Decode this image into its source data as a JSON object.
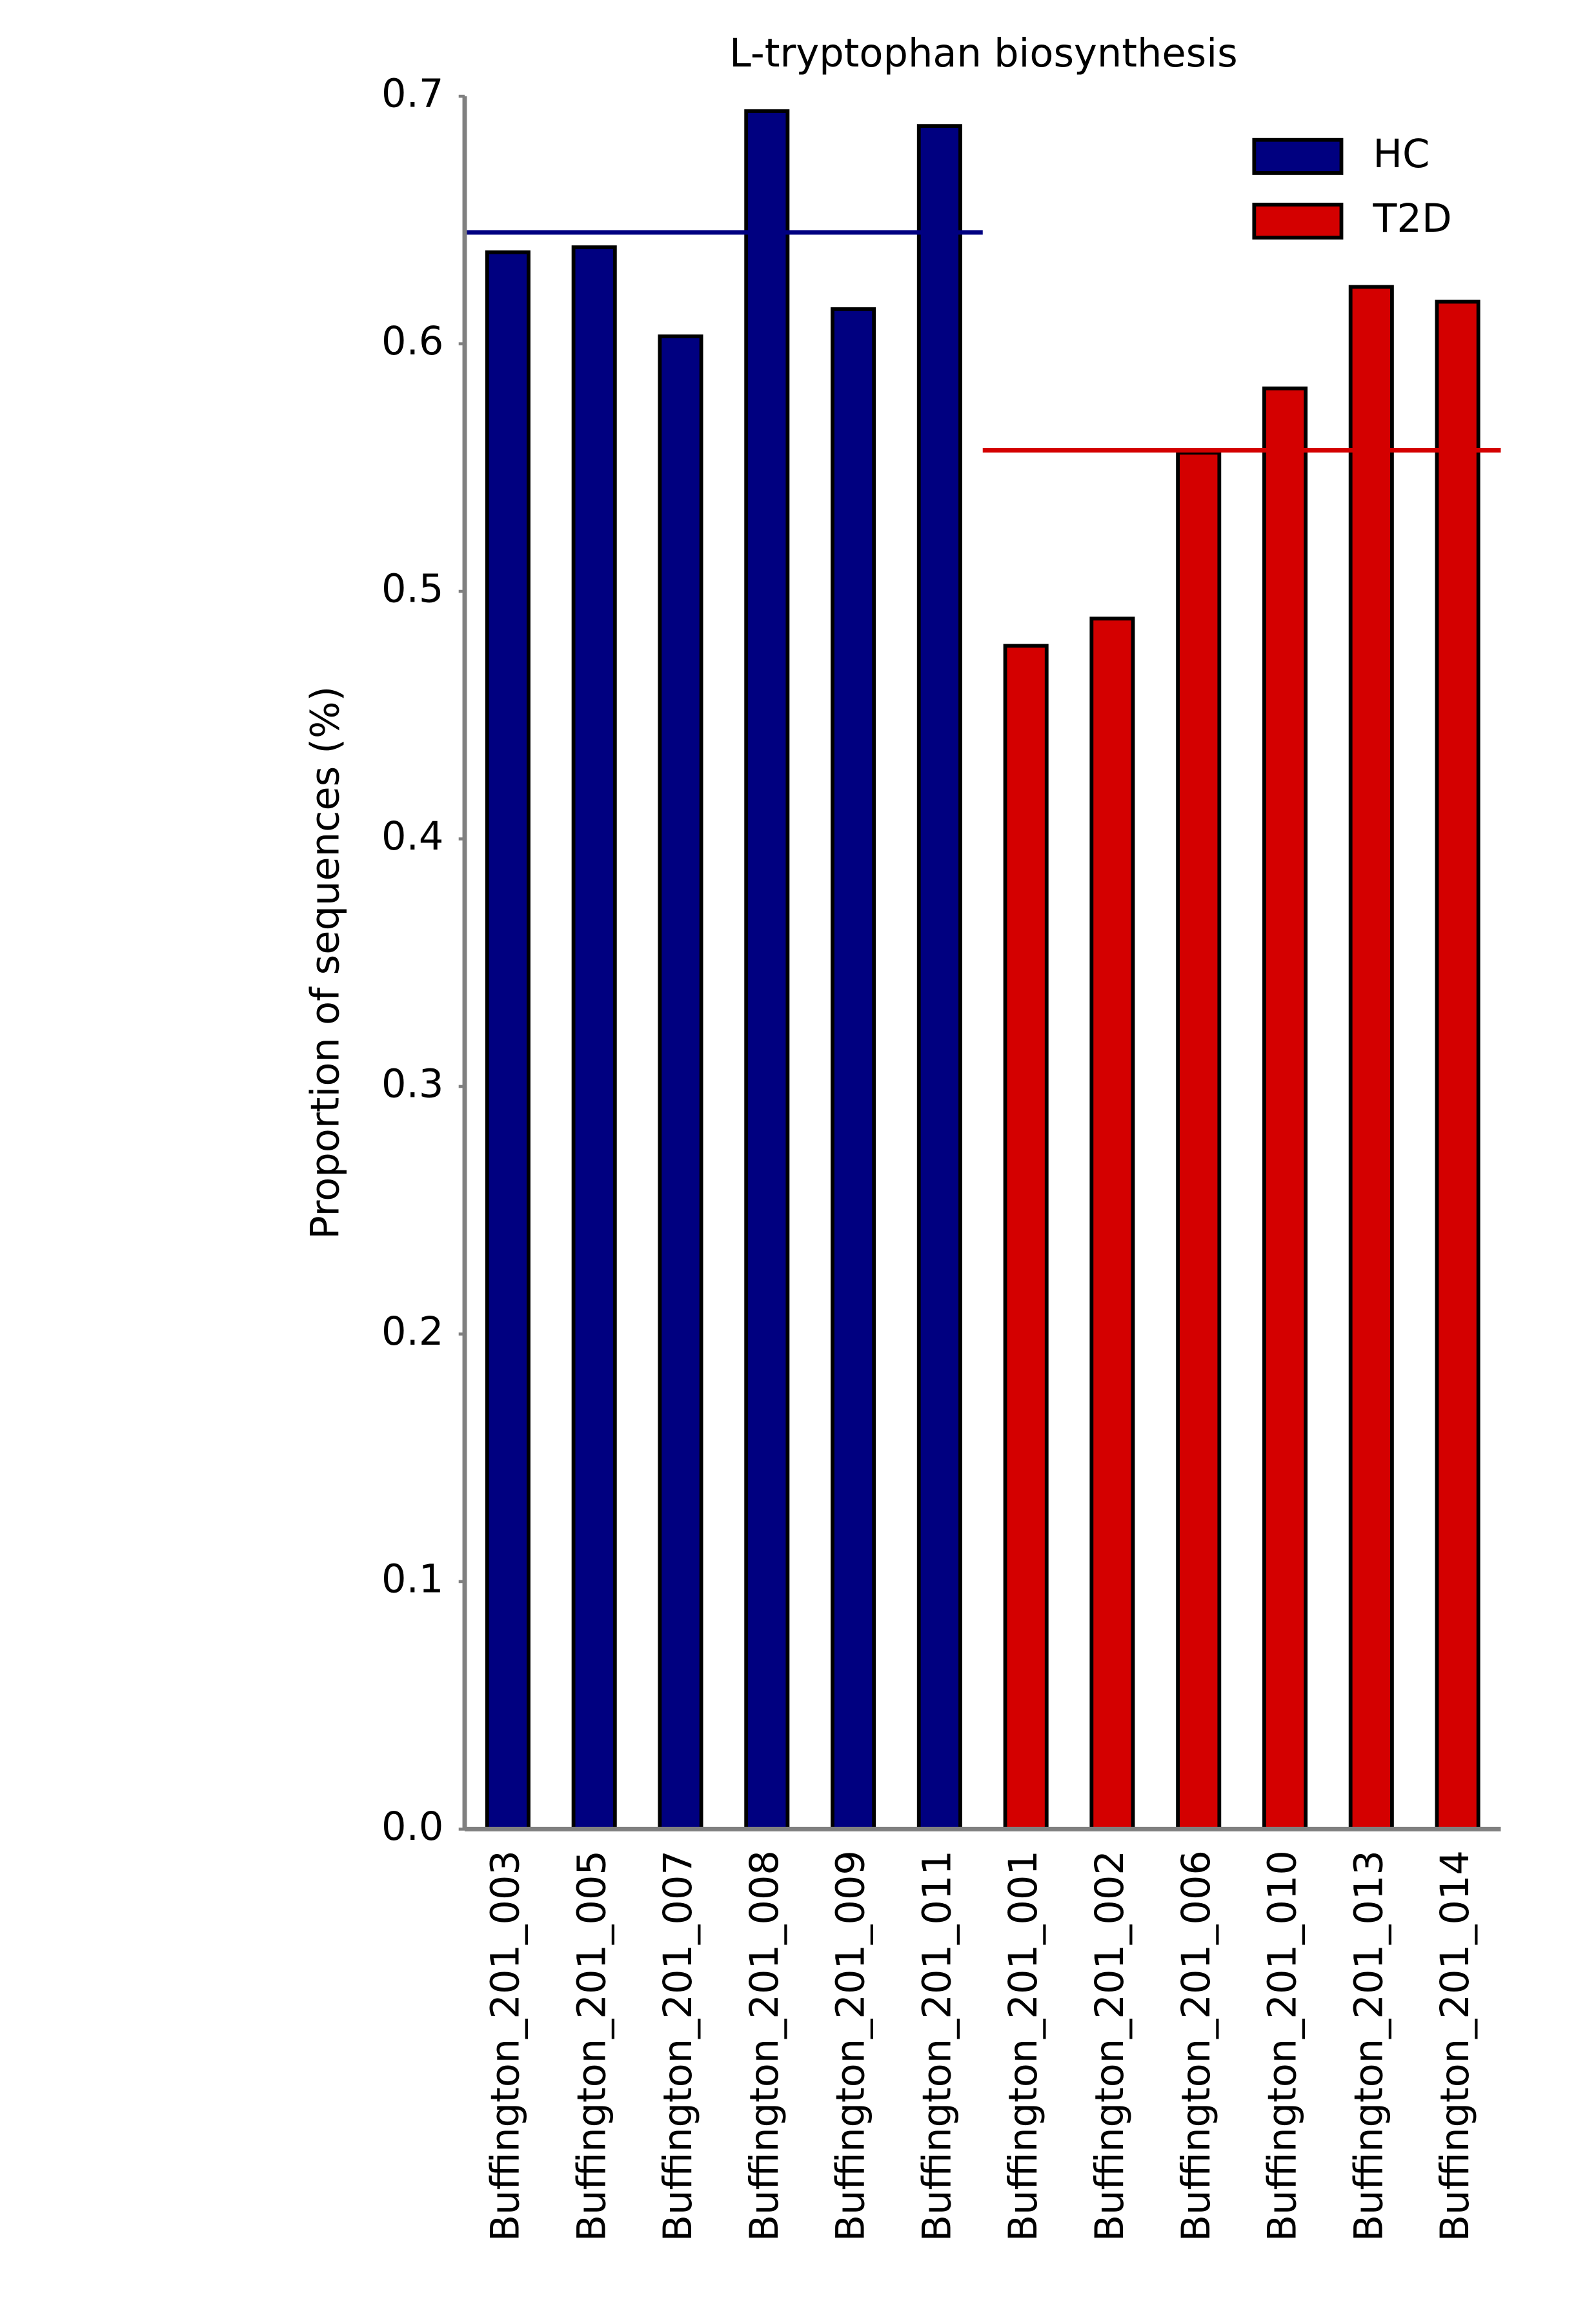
{
  "chart_data": {
    "type": "bar",
    "title": "L-tryptophan biosynthesis",
    "y_label": "Proportion of sequences (%)",
    "categories": [
      "Buffington_201_003",
      "Buffington_201_005",
      "Buffington_201_007",
      "Buffington_201_008",
      "Buffington_201_009",
      "Buffington_201_011",
      "Buffington_201_001",
      "Buffington_201_002",
      "Buffington_201_006",
      "Buffington_201_010",
      "Buffington_201_013",
      "Buffington_201_014"
    ],
    "series": [
      {
        "name": "HC",
        "color": "#000080",
        "values": [
          0.637,
          0.639,
          0.603,
          0.694,
          0.614,
          0.688,
          null,
          null,
          null,
          null,
          null,
          null
        ],
        "mean": 0.645
      },
      {
        "name": "T2D",
        "color": "#d40000",
        "values": [
          null,
          null,
          null,
          null,
          null,
          null,
          0.478,
          0.489,
          0.556,
          0.582,
          0.623,
          0.617
        ],
        "mean": 0.557
      }
    ],
    "ylim": [
      0,
      0.7
    ],
    "yticks": [
      {
        "value": 0,
        "label": "0.0"
      },
      0.1,
      0.2,
      0.3,
      0.4,
      0.5,
      0.6,
      0.7
    ],
    "legend": "upper right"
  }
}
